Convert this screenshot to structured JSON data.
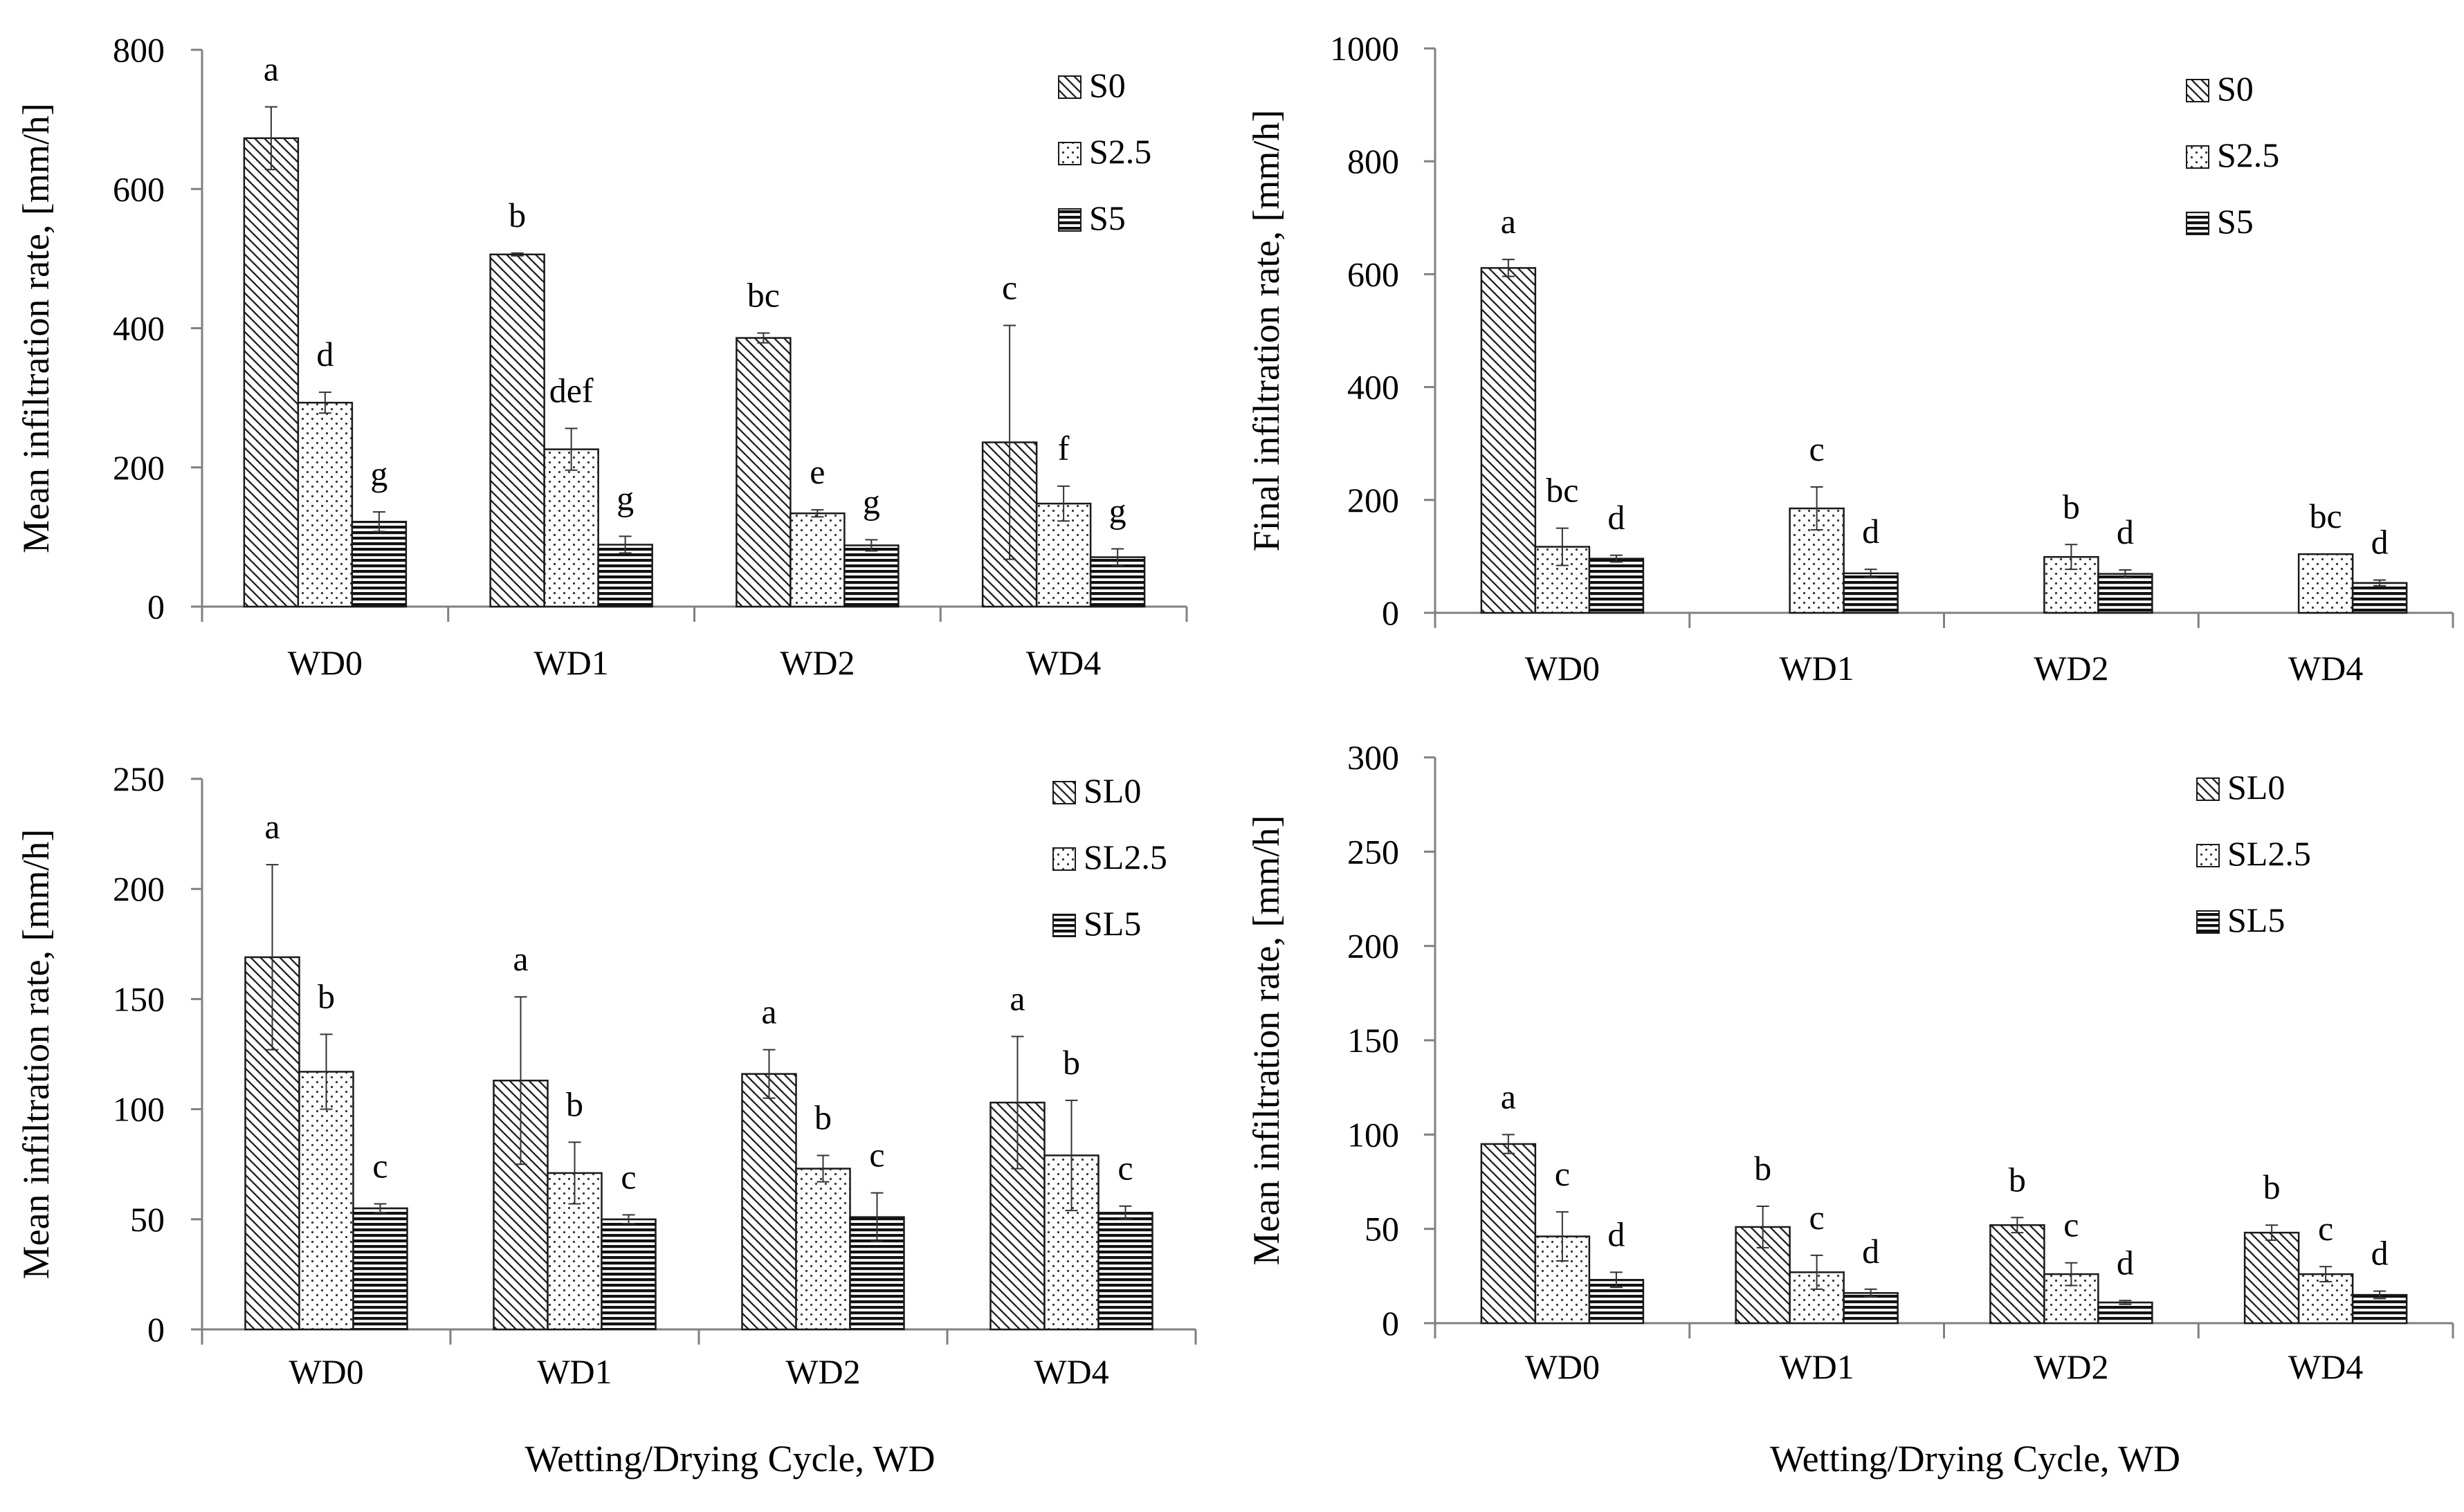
{
  "colors": {
    "axis": "#808080",
    "bar_edge": "#1a1a1a",
    "ink": "#000000",
    "error": "#333333"
  },
  "chart_data": [
    {
      "type": "bar",
      "panel": "top-left",
      "categories": [
        "WD0",
        "WD1",
        "WD2",
        "WD4"
      ],
      "ylabel": "Mean infiltration rate, [mm/h]",
      "xlabel": "",
      "ylim": [
        0,
        800
      ],
      "yticks": [
        "0",
        "200",
        "400",
        "600",
        "800"
      ],
      "legend_position": "top-right",
      "series": [
        {
          "name": "S0",
          "pattern": "diag",
          "values": [
            673,
            506,
            386,
            236
          ],
          "errors": [
            45,
            2,
            7,
            168
          ],
          "letters": [
            "a",
            "b",
            "bc",
            "c"
          ]
        },
        {
          "name": "S2.5",
          "pattern": "dots",
          "values": [
            293,
            226,
            134,
            148
          ],
          "errors": [
            15,
            30,
            5,
            25
          ],
          "letters": [
            "d",
            "def",
            "e",
            "f"
          ]
        },
        {
          "name": "S5",
          "pattern": "hlines",
          "values": [
            122,
            89,
            88,
            71
          ],
          "errors": [
            14,
            12,
            8,
            12
          ],
          "letters": [
            "g",
            "g",
            "g",
            "g"
          ]
        }
      ]
    },
    {
      "type": "bar",
      "panel": "top-right",
      "categories": [
        "WD0",
        "WD1",
        "WD2",
        "WD4"
      ],
      "ylabel": "Final infiltration rate, [mm/h]",
      "xlabel": "",
      "ylim": [
        0,
        1000
      ],
      "yticks": [
        "0",
        "200",
        "400",
        "600",
        "800",
        "1000"
      ],
      "legend_position": "top-right",
      "series": [
        {
          "name": "S0",
          "pattern": "diag",
          "values": [
            611,
            0,
            0,
            0
          ],
          "errors": [
            15,
            0,
            0,
            0
          ],
          "letters": [
            "a",
            "",
            "",
            ""
          ]
        },
        {
          "name": "S2.5",
          "pattern": "dots",
          "values": [
            117,
            185,
            99,
            104
          ],
          "errors": [
            33,
            38,
            22,
            0
          ],
          "letters": [
            "bc",
            "c",
            "b",
            "bc"
          ]
        },
        {
          "name": "S5",
          "pattern": "hlines",
          "values": [
            96,
            70,
            69,
            53
          ],
          "errors": [
            6,
            7,
            7,
            5
          ],
          "letters": [
            "d",
            "d",
            "d",
            "d"
          ]
        }
      ]
    },
    {
      "type": "bar",
      "panel": "bottom-left",
      "categories": [
        "WD0",
        "WD1",
        "WD2",
        "WD4"
      ],
      "ylabel": "Mean infiltration rate, [mm/h]",
      "xlabel": "Wetting/Drying Cycle, WD",
      "ylim": [
        0,
        250
      ],
      "yticks": [
        "0",
        "50",
        "100",
        "150",
        "200",
        "250"
      ],
      "legend_position": "top-right",
      "series": [
        {
          "name": "SL0",
          "pattern": "diag",
          "values": [
            169,
            113,
            116,
            103
          ],
          "errors": [
            42,
            38,
            11,
            30
          ],
          "letters": [
            "a",
            "a",
            "a",
            "a"
          ]
        },
        {
          "name": "SL2.5",
          "pattern": "dots",
          "values": [
            117,
            71,
            73,
            79
          ],
          "errors": [
            17,
            14,
            6,
            25
          ],
          "letters": [
            "b",
            "b",
            "b",
            "b"
          ]
        },
        {
          "name": "SL5",
          "pattern": "hlines",
          "values": [
            55,
            50,
            51,
            53
          ],
          "errors": [
            2,
            2,
            11,
            3
          ],
          "letters": [
            "c",
            "c",
            "c",
            "c"
          ]
        }
      ]
    },
    {
      "type": "bar",
      "panel": "bottom-right",
      "categories": [
        "WD0",
        "WD1",
        "WD2",
        "WD4"
      ],
      "ylabel": "Mean infiltration rate, [mm/h]",
      "xlabel": "Wetting/Drying Cycle, WD",
      "ylim": [
        0,
        300
      ],
      "yticks": [
        "0",
        "50",
        "100",
        "150",
        "200",
        "250",
        "300"
      ],
      "legend_position": "top-right",
      "series": [
        {
          "name": "SL0",
          "pattern": "diag",
          "values": [
            95,
            51,
            52,
            48
          ],
          "errors": [
            5,
            11,
            4,
            4
          ],
          "letters": [
            "a",
            "b",
            "b",
            "b"
          ]
        },
        {
          "name": "SL2.5",
          "pattern": "dots",
          "values": [
            46,
            27,
            26,
            26
          ],
          "errors": [
            13,
            9,
            6,
            4
          ],
          "letters": [
            "c",
            "c",
            "c",
            "c"
          ]
        },
        {
          "name": "SL5",
          "pattern": "hlines",
          "values": [
            23,
            16,
            11,
            15
          ],
          "errors": [
            4,
            2,
            1,
            2
          ],
          "letters": [
            "d",
            "d",
            "d",
            "d"
          ]
        }
      ]
    }
  ]
}
